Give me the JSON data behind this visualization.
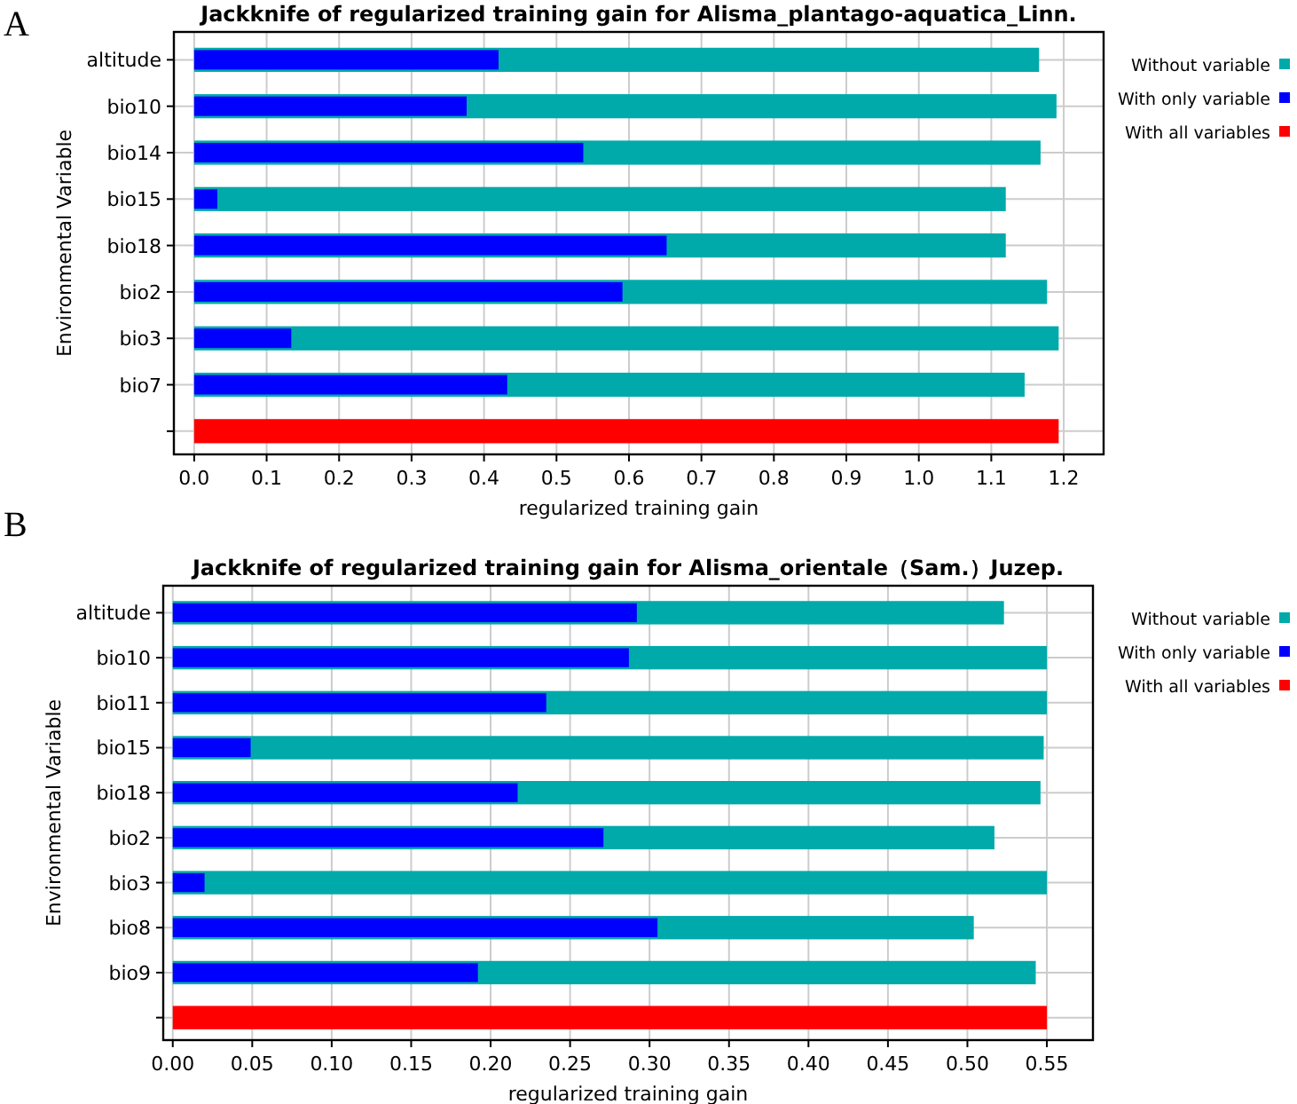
{
  "chart_data": [
    {
      "type": "bar",
      "orientation": "horizontal",
      "title": "Jackknife of regularized training gain for Alisma_plantago-aquatica_Linn.",
      "xlabel": "regularized training gain",
      "ylabel": "Environmental Variable",
      "annotations": [
        "A"
      ],
      "categories": [
        "altitude",
        "bio10",
        "bio14",
        "bio15",
        "bio18",
        "bio2",
        "bio3",
        "bio7",
        null
      ],
      "series": [
        {
          "name": "Without variable",
          "color": "#00aaaa",
          "values": [
            1.166,
            1.19,
            1.168,
            1.12,
            1.12,
            1.177,
            1.193,
            1.146,
            null
          ]
        },
        {
          "name": "With only variable",
          "color": "#0000ff",
          "values": [
            0.42,
            0.376,
            0.537,
            0.032,
            0.652,
            0.591,
            0.134,
            0.432,
            null
          ]
        },
        {
          "name": "With all variables",
          "color": "#ff0000",
          "values": [
            null,
            null,
            null,
            null,
            null,
            null,
            null,
            null,
            1.193
          ]
        }
      ],
      "xlim": [
        -0.028,
        1.255
      ],
      "xticks": [
        {
          "value": 0,
          "label": "0.0"
        },
        0.1,
        0.2,
        0.3,
        0.4,
        0.5,
        0.6,
        0.7,
        0.8,
        0.9,
        {
          "value": 1,
          "label": "1.0"
        },
        1.1,
        1.2
      ],
      "grid": true,
      "legend": "right"
    },
    {
      "type": "bar",
      "orientation": "horizontal",
      "title": "Jackknife of regularized training gain for Alisma_orientale（Sam.）Juzep.",
      "xlabel": "regularized training gain",
      "ylabel": "Environmental Variable",
      "annotations": [
        "B"
      ],
      "categories": [
        "altitude",
        "bio10",
        "bio11",
        "bio15",
        "bio18",
        "bio2",
        "bio3",
        "bio8",
        "bio9",
        null
      ],
      "series": [
        {
          "name": "Without variable",
          "color": "#00aaaa",
          "values": [
            0.523,
            0.55,
            0.55,
            0.548,
            0.546,
            0.517,
            0.55,
            0.504,
            0.543,
            null
          ]
        },
        {
          "name": "With only variable",
          "color": "#0000ff",
          "values": [
            0.292,
            0.287,
            0.235,
            0.049,
            0.217,
            0.271,
            0.02,
            0.305,
            0.192,
            null
          ]
        },
        {
          "name": "With all variables",
          "color": "#ff0000",
          "values": [
            null,
            null,
            null,
            null,
            null,
            null,
            null,
            null,
            null,
            0.55
          ]
        }
      ],
      "xlim": [
        -0.006,
        0.579
      ],
      "xticks": [
        {
          "value": 0,
          "label": "0.00"
        },
        0.05,
        {
          "value": 0.1,
          "label": "0.10"
        },
        0.15,
        {
          "value": 0.2,
          "label": "0.20"
        },
        0.25,
        {
          "value": 0.3,
          "label": "0.30"
        },
        0.35,
        {
          "value": 0.4,
          "label": "0.40"
        },
        0.45,
        {
          "value": 0.5,
          "label": "0.50"
        },
        0.55
      ],
      "grid": true,
      "legend": "right"
    }
  ]
}
